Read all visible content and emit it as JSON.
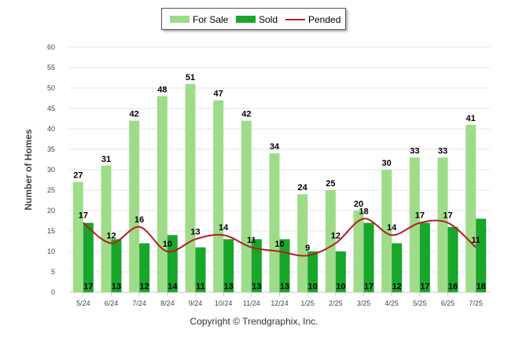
{
  "legend": {
    "for_sale": "For Sale",
    "sold": "Sold",
    "pended": "Pended"
  },
  "copyright": "Copyright © Trendgraphix, Inc.",
  "colors": {
    "for_sale": "#9edc8a",
    "sold": "#18a62b",
    "pended": "#b41f1f",
    "grid": "#e6e6e6"
  },
  "chart_data": {
    "type": "bar",
    "ylabel": "Number of Homes",
    "xlabel": "",
    "ylim": [
      0,
      60
    ],
    "yticks": [
      0,
      5,
      10,
      15,
      20,
      25,
      30,
      35,
      40,
      45,
      50,
      55,
      60
    ],
    "grid": true,
    "legend_position": "top-center",
    "categories": [
      "5/24",
      "6/24",
      "7/24",
      "8/24",
      "9/24",
      "10/24",
      "11/24",
      "12/24",
      "1/25",
      "2/25",
      "3/25",
      "4/25",
      "5/25",
      "6/25",
      "7/25"
    ],
    "series": [
      {
        "name": "For Sale",
        "type": "bar",
        "values": [
          27,
          31,
          42,
          48,
          51,
          47,
          42,
          34,
          24,
          25,
          20,
          30,
          33,
          33,
          41
        ]
      },
      {
        "name": "Sold",
        "type": "bar",
        "values": [
          17,
          13,
          12,
          14,
          11,
          13,
          13,
          13,
          10,
          10,
          17,
          12,
          17,
          16,
          18
        ]
      },
      {
        "name": "Pended",
        "type": "line",
        "values": [
          17,
          12,
          16,
          10,
          13,
          14,
          11,
          10,
          9,
          12,
          18,
          14,
          17,
          17,
          11
        ]
      }
    ]
  }
}
